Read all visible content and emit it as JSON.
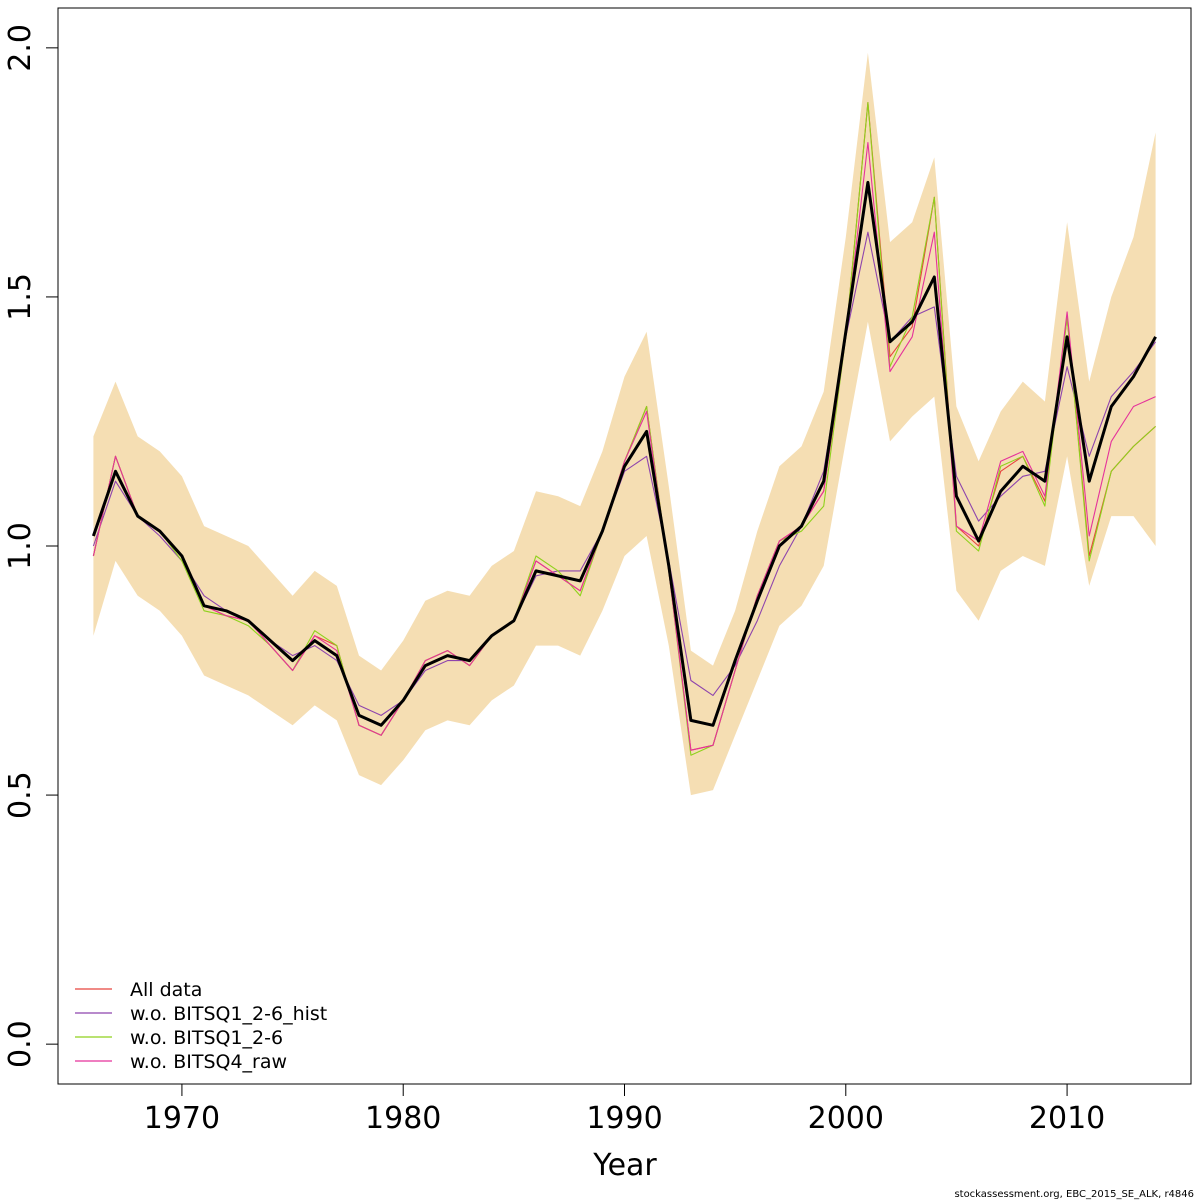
{
  "chart_data": {
    "type": "line",
    "title": "",
    "xlabel": "Year",
    "ylabel": "",
    "xlim": [
      1964.4,
      2015.6
    ],
    "ylim": [
      -0.08,
      2.08
    ],
    "xticks": [
      1970,
      1980,
      1990,
      2000,
      2010
    ],
    "yticks": [
      "0.0",
      "0.5",
      "1.0",
      "1.5",
      "2.0"
    ],
    "grid": false,
    "legend_position": "bottom-left",
    "x": [
      1966,
      1967,
      1968,
      1969,
      1970,
      1971,
      1972,
      1973,
      1974,
      1975,
      1976,
      1977,
      1978,
      1979,
      1980,
      1981,
      1982,
      1983,
      1984,
      1985,
      1986,
      1987,
      1988,
      1989,
      1990,
      1991,
      1992,
      1993,
      1994,
      1995,
      1996,
      1997,
      1998,
      1999,
      2000,
      2001,
      2002,
      2003,
      2004,
      2005,
      2006,
      2007,
      2008,
      2009,
      2010,
      2011,
      2012,
      2013,
      2014
    ],
    "band": {
      "color": "#F5DEB3",
      "lower": [
        0.82,
        0.97,
        0.9,
        0.87,
        0.82,
        0.74,
        0.72,
        0.7,
        0.67,
        0.64,
        0.68,
        0.65,
        0.54,
        0.52,
        0.57,
        0.63,
        0.65,
        0.64,
        0.69,
        0.72,
        0.8,
        0.8,
        0.78,
        0.87,
        0.98,
        1.02,
        0.8,
        0.5,
        0.51,
        0.62,
        0.73,
        0.84,
        0.88,
        0.96,
        1.21,
        1.45,
        1.21,
        1.26,
        1.3,
        0.91,
        0.85,
        0.95,
        0.98,
        0.96,
        1.18,
        0.92,
        1.06,
        1.06,
        1.0
      ],
      "upper": [
        1.22,
        1.33,
        1.22,
        1.19,
        1.14,
        1.04,
        1.02,
        1.0,
        0.95,
        0.9,
        0.95,
        0.92,
        0.78,
        0.75,
        0.81,
        0.89,
        0.91,
        0.9,
        0.96,
        0.99,
        1.11,
        1.1,
        1.08,
        1.19,
        1.34,
        1.43,
        1.12,
        0.79,
        0.76,
        0.87,
        1.03,
        1.16,
        1.2,
        1.31,
        1.62,
        1.99,
        1.61,
        1.65,
        1.78,
        1.28,
        1.17,
        1.27,
        1.33,
        1.29,
        1.65,
        1.33,
        1.5,
        1.62,
        1.83
      ]
    },
    "main_line": {
      "name": "",
      "color": "#000000",
      "values": [
        1.02,
        1.15,
        1.06,
        1.03,
        0.98,
        0.88,
        0.87,
        0.85,
        0.81,
        0.77,
        0.81,
        0.78,
        0.66,
        0.64,
        0.69,
        0.76,
        0.78,
        0.77,
        0.82,
        0.85,
        0.95,
        0.94,
        0.93,
        1.03,
        1.16,
        1.23,
        0.96,
        0.65,
        0.64,
        0.77,
        0.89,
        1.0,
        1.04,
        1.13,
        1.43,
        1.73,
        1.41,
        1.45,
        1.54,
        1.1,
        1.01,
        1.11,
        1.16,
        1.13,
        1.42,
        1.13,
        1.28,
        1.34,
        1.42
      ]
    },
    "series": [
      {
        "name": "All data",
        "color": "#E8433F",
        "values": [
          0.98,
          1.18,
          1.06,
          1.03,
          0.98,
          0.88,
          0.86,
          0.85,
          0.8,
          0.75,
          0.82,
          0.8,
          0.64,
          0.62,
          0.69,
          0.77,
          0.79,
          0.76,
          0.82,
          0.85,
          0.97,
          0.94,
          0.91,
          1.03,
          1.17,
          1.28,
          0.95,
          0.59,
          0.6,
          0.75,
          0.9,
          1.01,
          1.04,
          1.11,
          1.42,
          1.89,
          1.38,
          1.44,
          1.7,
          1.04,
          1.0,
          1.15,
          1.18,
          1.09,
          1.46,
          0.98,
          1.15,
          1.2,
          1.24
        ]
      },
      {
        "name": "w.o. BITSQ1_2-6_hist",
        "color": "#8E44AD",
        "values": [
          1.0,
          1.13,
          1.06,
          1.02,
          0.97,
          0.9,
          0.87,
          0.85,
          0.81,
          0.78,
          0.8,
          0.77,
          0.68,
          0.66,
          0.69,
          0.75,
          0.77,
          0.77,
          0.82,
          0.85,
          0.94,
          0.95,
          0.95,
          1.03,
          1.15,
          1.18,
          0.97,
          0.73,
          0.7,
          0.76,
          0.85,
          0.96,
          1.04,
          1.15,
          1.42,
          1.63,
          1.41,
          1.46,
          1.48,
          1.14,
          1.05,
          1.1,
          1.14,
          1.15,
          1.36,
          1.18,
          1.3,
          1.35,
          1.41
        ]
      },
      {
        "name": "w.o. BITSQ1_2-6",
        "color": "#8FD11C",
        "values": [
          0.98,
          1.18,
          1.06,
          1.03,
          0.97,
          0.87,
          0.86,
          0.84,
          0.8,
          0.75,
          0.83,
          0.8,
          0.64,
          0.62,
          0.69,
          0.77,
          0.79,
          0.76,
          0.82,
          0.85,
          0.98,
          0.95,
          0.9,
          1.03,
          1.17,
          1.28,
          0.95,
          0.58,
          0.6,
          0.75,
          0.9,
          1.01,
          1.03,
          1.08,
          1.42,
          1.89,
          1.36,
          1.46,
          1.7,
          1.03,
          0.99,
          1.16,
          1.18,
          1.08,
          1.46,
          0.97,
          1.15,
          1.2,
          1.24
        ]
      },
      {
        "name": "w.o. BITSQ4_raw",
        "color": "#E5329B",
        "values": [
          0.98,
          1.18,
          1.06,
          1.03,
          0.98,
          0.88,
          0.86,
          0.85,
          0.8,
          0.75,
          0.82,
          0.79,
          0.64,
          0.62,
          0.69,
          0.77,
          0.79,
          0.76,
          0.82,
          0.85,
          0.97,
          0.94,
          0.91,
          1.03,
          1.17,
          1.27,
          0.95,
          0.59,
          0.6,
          0.75,
          0.9,
          1.01,
          1.04,
          1.11,
          1.42,
          1.81,
          1.35,
          1.42,
          1.63,
          1.04,
          1.01,
          1.17,
          1.19,
          1.1,
          1.47,
          1.02,
          1.21,
          1.28,
          1.3
        ]
      }
    ],
    "footer": "stockassessment.org, EBC_2015_SE_ALK, r4846"
  }
}
